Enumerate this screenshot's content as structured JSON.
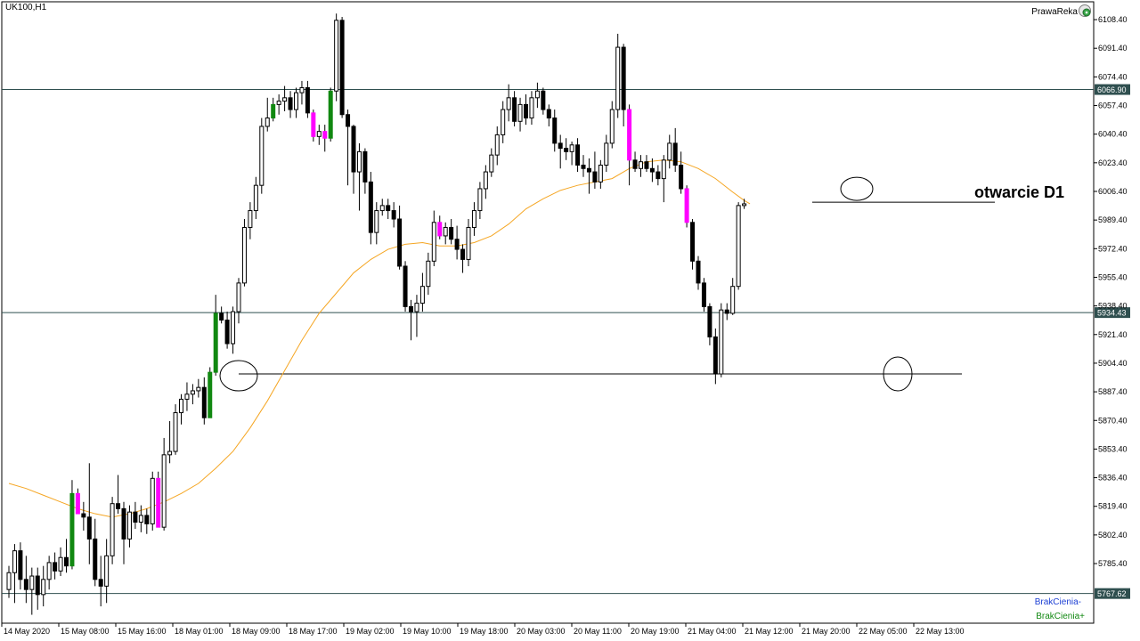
{
  "header": {
    "symbol": "UK100,H1",
    "broker": "PrawaReka"
  },
  "annotation": "otwarcie D1",
  "legend": {
    "minus": "BrakCienia-",
    "plus": "BrakCienia+"
  },
  "colors": {
    "bull_nowick": "#118811",
    "bear_nowick": "#ff00ff",
    "ma": "#f5a623",
    "hline": "#2f4f4f",
    "text": "#000000"
  },
  "icons": {
    "broker": "globe-gear-icon"
  },
  "chart_data": {
    "type": "candlestick",
    "symbol": "UK100",
    "timeframe": "H1",
    "ylim": [
      5750,
      6119
    ],
    "y_ticks": [
      "6108.40",
      "6091.40",
      "6074.40",
      "6057.40",
      "6040.40",
      "6023.40",
      "6006.40",
      "5989.40",
      "5972.40",
      "5955.40",
      "5938.40",
      "5921.40",
      "5904.40",
      "5887.40",
      "5870.40",
      "5853.40",
      "5836.40",
      "5819.40",
      "5802.40",
      "5785.40"
    ],
    "x_ticks": [
      "14 May 2020",
      "15 May 08:00",
      "15 May 16:00",
      "18 May 01:00",
      "18 May 09:00",
      "18 May 17:00",
      "19 May 02:00",
      "19 May 10:00",
      "19 May 18:00",
      "20 May 03:00",
      "20 May 11:00",
      "20 May 19:00",
      "21 May 04:00",
      "21 May 12:00",
      "21 May 20:00",
      "22 May 05:00",
      "22 May 13:00"
    ],
    "price_levels": [
      {
        "value": 6066.9,
        "label": "6066.90"
      },
      {
        "value": 5934.43,
        "label": "5934.43"
      },
      {
        "value": 5767.62,
        "label": "5767.62"
      }
    ],
    "support_lines": [
      {
        "value": 5898
      },
      {
        "value": 6000
      }
    ],
    "candles": [
      {
        "o": 5770,
        "h": 5784,
        "l": 5765,
        "c": 5780,
        "s": "n"
      },
      {
        "o": 5780,
        "h": 5797,
        "l": 5762,
        "c": 5793,
        "s": "n"
      },
      {
        "o": 5793,
        "h": 5798,
        "l": 5770,
        "c": 5776,
        "s": "n"
      },
      {
        "o": 5776,
        "h": 5790,
        "l": 5762,
        "c": 5770,
        "s": "n"
      },
      {
        "o": 5770,
        "h": 5783,
        "l": 5755,
        "c": 5778,
        "s": "n"
      },
      {
        "o": 5778,
        "h": 5783,
        "l": 5758,
        "c": 5767,
        "s": "n"
      },
      {
        "o": 5767,
        "h": 5784,
        "l": 5760,
        "c": 5776,
        "s": "n"
      },
      {
        "o": 5776,
        "h": 5790,
        "l": 5770,
        "c": 5786,
        "s": "n"
      },
      {
        "o": 5786,
        "h": 5792,
        "l": 5776,
        "c": 5781,
        "s": "n"
      },
      {
        "o": 5781,
        "h": 5795,
        "l": 5778,
        "c": 5789,
        "s": "n"
      },
      {
        "o": 5789,
        "h": 5800,
        "l": 5780,
        "c": 5784,
        "s": "n"
      },
      {
        "o": 5784,
        "h": 5835,
        "l": 5782,
        "c": 5827,
        "s": "g"
      },
      {
        "o": 5827,
        "h": 5830,
        "l": 5815,
        "c": 5815,
        "s": "m"
      },
      {
        "o": 5815,
        "h": 5822,
        "l": 5805,
        "c": 5813,
        "s": "n"
      },
      {
        "o": 5813,
        "h": 5845,
        "l": 5785,
        "c": 5800,
        "s": "n"
      },
      {
        "o": 5800,
        "h": 5812,
        "l": 5772,
        "c": 5776,
        "s": "n"
      },
      {
        "o": 5776,
        "h": 5790,
        "l": 5760,
        "c": 5772,
        "s": "n"
      },
      {
        "o": 5772,
        "h": 5800,
        "l": 5762,
        "c": 5790,
        "s": "n"
      },
      {
        "o": 5790,
        "h": 5825,
        "l": 5785,
        "c": 5821,
        "s": "n"
      },
      {
        "o": 5821,
        "h": 5838,
        "l": 5815,
        "c": 5818,
        "s": "n"
      },
      {
        "o": 5818,
        "h": 5822,
        "l": 5785,
        "c": 5800,
        "s": "n"
      },
      {
        "o": 5800,
        "h": 5820,
        "l": 5795,
        "c": 5816,
        "s": "n"
      },
      {
        "o": 5816,
        "h": 5822,
        "l": 5806,
        "c": 5810,
        "s": "n"
      },
      {
        "o": 5810,
        "h": 5820,
        "l": 5804,
        "c": 5814,
        "s": "n"
      },
      {
        "o": 5814,
        "h": 5818,
        "l": 5803,
        "c": 5809,
        "s": "n"
      },
      {
        "o": 5809,
        "h": 5840,
        "l": 5805,
        "c": 5836,
        "s": "n"
      },
      {
        "o": 5836,
        "h": 5840,
        "l": 5807,
        "c": 5807,
        "s": "m"
      },
      {
        "o": 5807,
        "h": 5860,
        "l": 5805,
        "c": 5850,
        "s": "n"
      },
      {
        "o": 5850,
        "h": 5870,
        "l": 5845,
        "c": 5852,
        "s": "n"
      },
      {
        "o": 5852,
        "h": 5880,
        "l": 5850,
        "c": 5875,
        "s": "n"
      },
      {
        "o": 5875,
        "h": 5886,
        "l": 5868,
        "c": 5883,
        "s": "n"
      },
      {
        "o": 5883,
        "h": 5893,
        "l": 5876,
        "c": 5886,
        "s": "n"
      },
      {
        "o": 5886,
        "h": 5892,
        "l": 5880,
        "c": 5888,
        "s": "n"
      },
      {
        "o": 5888,
        "h": 5895,
        "l": 5884,
        "c": 5890,
        "s": "n"
      },
      {
        "o": 5890,
        "h": 5896,
        "l": 5868,
        "c": 5872,
        "s": "n"
      },
      {
        "o": 5872,
        "h": 5902,
        "l": 5872,
        "c": 5899,
        "s": "g"
      },
      {
        "o": 5899,
        "h": 5945,
        "l": 5897,
        "c": 5934,
        "s": "g"
      },
      {
        "o": 5934,
        "h": 5938,
        "l": 5928,
        "c": 5930,
        "s": "n"
      },
      {
        "o": 5930,
        "h": 5935,
        "l": 5913,
        "c": 5916,
        "s": "n"
      },
      {
        "o": 5916,
        "h": 5938,
        "l": 5910,
        "c": 5935,
        "s": "n"
      },
      {
        "o": 5935,
        "h": 5955,
        "l": 5928,
        "c": 5952,
        "s": "n"
      },
      {
        "o": 5952,
        "h": 5990,
        "l": 5950,
        "c": 5985,
        "s": "n"
      },
      {
        "o": 5985,
        "h": 6000,
        "l": 5978,
        "c": 5995,
        "s": "n"
      },
      {
        "o": 5995,
        "h": 6015,
        "l": 5990,
        "c": 6010,
        "s": "n"
      },
      {
        "o": 6010,
        "h": 6050,
        "l": 6005,
        "c": 6045,
        "s": "n"
      },
      {
        "o": 6045,
        "h": 6062,
        "l": 6042,
        "c": 6050,
        "s": "n"
      },
      {
        "o": 6050,
        "h": 6062,
        "l": 6048,
        "c": 6058,
        "s": "g"
      },
      {
        "o": 6058,
        "h": 6064,
        "l": 6052,
        "c": 6060,
        "s": "n"
      },
      {
        "o": 6060,
        "h": 6069,
        "l": 6054,
        "c": 6062,
        "s": "n"
      },
      {
        "o": 6062,
        "h": 6066,
        "l": 6050,
        "c": 6055,
        "s": "n"
      },
      {
        "o": 6055,
        "h": 6068,
        "l": 6050,
        "c": 6065,
        "s": "n"
      },
      {
        "o": 6065,
        "h": 6072,
        "l": 6058,
        "c": 6068,
        "s": "n"
      },
      {
        "o": 6068,
        "h": 6072,
        "l": 6050,
        "c": 6053,
        "s": "n"
      },
      {
        "o": 6053,
        "h": 6055,
        "l": 6036,
        "c": 6039,
        "s": "m"
      },
      {
        "o": 6039,
        "h": 6046,
        "l": 6034,
        "c": 6042,
        "s": "n"
      },
      {
        "o": 6042,
        "h": 6046,
        "l": 6030,
        "c": 6038,
        "s": "m"
      },
      {
        "o": 6038,
        "h": 6068,
        "l": 6036,
        "c": 6066,
        "s": "g"
      },
      {
        "o": 6066,
        "h": 6112,
        "l": 6060,
        "c": 6108,
        "s": "n"
      },
      {
        "o": 6108,
        "h": 6110,
        "l": 6050,
        "c": 6052,
        "s": "n"
      },
      {
        "o": 6052,
        "h": 6055,
        "l": 6010,
        "c": 6045,
        "s": "n"
      },
      {
        "o": 6045,
        "h": 6046,
        "l": 6005,
        "c": 6018,
        "s": "n"
      },
      {
        "o": 6018,
        "h": 6035,
        "l": 5995,
        "c": 6030,
        "s": "n"
      },
      {
        "o": 6030,
        "h": 6032,
        "l": 6005,
        "c": 6012,
        "s": "n"
      },
      {
        "o": 6012,
        "h": 6018,
        "l": 5975,
        "c": 5982,
        "s": "n"
      },
      {
        "o": 5982,
        "h": 6000,
        "l": 5975,
        "c": 5995,
        "s": "n"
      },
      {
        "o": 5995,
        "h": 6002,
        "l": 5992,
        "c": 5998,
        "s": "n"
      },
      {
        "o": 5998,
        "h": 6002,
        "l": 5990,
        "c": 5995,
        "s": "n"
      },
      {
        "o": 5995,
        "h": 6000,
        "l": 5985,
        "c": 5990,
        "s": "n"
      },
      {
        "o": 5990,
        "h": 5998,
        "l": 5960,
        "c": 5962,
        "s": "n"
      },
      {
        "o": 5962,
        "h": 5965,
        "l": 5935,
        "c": 5938,
        "s": "n"
      },
      {
        "o": 5938,
        "h": 5942,
        "l": 5918,
        "c": 5935,
        "s": "n"
      },
      {
        "o": 5935,
        "h": 5945,
        "l": 5920,
        "c": 5940,
        "s": "n"
      },
      {
        "o": 5940,
        "h": 5958,
        "l": 5935,
        "c": 5950,
        "s": "n"
      },
      {
        "o": 5950,
        "h": 5970,
        "l": 5945,
        "c": 5965,
        "s": "n"
      },
      {
        "o": 5965,
        "h": 5995,
        "l": 5962,
        "c": 5988,
        "s": "n"
      },
      {
        "o": 5988,
        "h": 5992,
        "l": 5978,
        "c": 5980,
        "s": "m"
      },
      {
        "o": 5980,
        "h": 5988,
        "l": 5975,
        "c": 5985,
        "s": "n"
      },
      {
        "o": 5985,
        "h": 5990,
        "l": 5975,
        "c": 5978,
        "s": "n"
      },
      {
        "o": 5978,
        "h": 5986,
        "l": 5966,
        "c": 5972,
        "s": "n"
      },
      {
        "o": 5972,
        "h": 5975,
        "l": 5958,
        "c": 5966,
        "s": "n"
      },
      {
        "o": 5966,
        "h": 5990,
        "l": 5962,
        "c": 5985,
        "s": "n"
      },
      {
        "o": 5985,
        "h": 6000,
        "l": 5980,
        "c": 5995,
        "s": "n"
      },
      {
        "o": 5995,
        "h": 6012,
        "l": 5990,
        "c": 6008,
        "s": "n"
      },
      {
        "o": 6008,
        "h": 6022,
        "l": 6002,
        "c": 6018,
        "s": "n"
      },
      {
        "o": 6018,
        "h": 6032,
        "l": 6015,
        "c": 6028,
        "s": "n"
      },
      {
        "o": 6028,
        "h": 6045,
        "l": 6022,
        "c": 6040,
        "s": "n"
      },
      {
        "o": 6040,
        "h": 6060,
        "l": 6035,
        "c": 6055,
        "s": "n"
      },
      {
        "o": 6055,
        "h": 6070,
        "l": 6048,
        "c": 6062,
        "s": "n"
      },
      {
        "o": 6062,
        "h": 6066,
        "l": 6045,
        "c": 6048,
        "s": "n"
      },
      {
        "o": 6048,
        "h": 6062,
        "l": 6042,
        "c": 6058,
        "s": "n"
      },
      {
        "o": 6058,
        "h": 6064,
        "l": 6046,
        "c": 6050,
        "s": "n"
      },
      {
        "o": 6050,
        "h": 6066,
        "l": 6046,
        "c": 6062,
        "s": "n"
      },
      {
        "o": 6062,
        "h": 6071,
        "l": 6056,
        "c": 6066,
        "s": "n"
      },
      {
        "o": 6066,
        "h": 6068,
        "l": 6052,
        "c": 6055,
        "s": "n"
      },
      {
        "o": 6055,
        "h": 6058,
        "l": 6045,
        "c": 6050,
        "s": "n"
      },
      {
        "o": 6050,
        "h": 6055,
        "l": 6030,
        "c": 6035,
        "s": "n"
      },
      {
        "o": 6035,
        "h": 6040,
        "l": 6020,
        "c": 6032,
        "s": "n"
      },
      {
        "o": 6032,
        "h": 6038,
        "l": 6025,
        "c": 6030,
        "s": "n"
      },
      {
        "o": 6030,
        "h": 6036,
        "l": 6022,
        "c": 6034,
        "s": "n"
      },
      {
        "o": 6034,
        "h": 6038,
        "l": 6018,
        "c": 6022,
        "s": "n"
      },
      {
        "o": 6022,
        "h": 6028,
        "l": 6015,
        "c": 6020,
        "s": "n"
      },
      {
        "o": 6020,
        "h": 6026,
        "l": 6005,
        "c": 6018,
        "s": "n"
      },
      {
        "o": 6018,
        "h": 6030,
        "l": 6008,
        "c": 6012,
        "s": "n"
      },
      {
        "o": 6012,
        "h": 6025,
        "l": 6008,
        "c": 6022,
        "s": "n"
      },
      {
        "o": 6022,
        "h": 6040,
        "l": 6018,
        "c": 6035,
        "s": "n"
      },
      {
        "o": 6035,
        "h": 6060,
        "l": 6032,
        "c": 6055,
        "s": "n"
      },
      {
        "o": 6055,
        "h": 6100,
        "l": 6050,
        "c": 6092,
        "s": "n"
      },
      {
        "o": 6092,
        "h": 6094,
        "l": 6045,
        "c": 6055,
        "s": "n"
      },
      {
        "o": 6055,
        "h": 6058,
        "l": 6010,
        "c": 6025,
        "s": "m"
      },
      {
        "o": 6025,
        "h": 6030,
        "l": 6018,
        "c": 6020,
        "s": "n"
      },
      {
        "o": 6020,
        "h": 6028,
        "l": 6015,
        "c": 6024,
        "s": "n"
      },
      {
        "o": 6024,
        "h": 6028,
        "l": 6018,
        "c": 6020,
        "s": "n"
      },
      {
        "o": 6020,
        "h": 6026,
        "l": 6012,
        "c": 6018,
        "s": "n"
      },
      {
        "o": 6018,
        "h": 6022,
        "l": 6010,
        "c": 6014,
        "s": "n"
      },
      {
        "o": 6014,
        "h": 6028,
        "l": 6000,
        "c": 6025,
        "s": "n"
      },
      {
        "o": 6025,
        "h": 6040,
        "l": 6020,
        "c": 6035,
        "s": "n"
      },
      {
        "o": 6035,
        "h": 6044,
        "l": 6018,
        "c": 6022,
        "s": "n"
      },
      {
        "o": 6022,
        "h": 6030,
        "l": 6005,
        "c": 6008,
        "s": "n"
      },
      {
        "o": 6008,
        "h": 6010,
        "l": 5985,
        "c": 5988,
        "s": "m"
      },
      {
        "o": 5988,
        "h": 5990,
        "l": 5960,
        "c": 5965,
        "s": "n"
      },
      {
        "o": 5965,
        "h": 5968,
        "l": 5948,
        "c": 5952,
        "s": "n"
      },
      {
        "o": 5952,
        "h": 5955,
        "l": 5935,
        "c": 5938,
        "s": "n"
      },
      {
        "o": 5938,
        "h": 5940,
        "l": 5915,
        "c": 5920,
        "s": "n"
      },
      {
        "o": 5920,
        "h": 5925,
        "l": 5892,
        "c": 5898,
        "s": "n"
      },
      {
        "o": 5898,
        "h": 5940,
        "l": 5896,
        "c": 5936,
        "s": "n"
      },
      {
        "o": 5936,
        "h": 5940,
        "l": 5930,
        "c": 5934,
        "s": "n"
      },
      {
        "o": 5934,
        "h": 5955,
        "l": 5933,
        "c": 5950,
        "s": "n"
      },
      {
        "o": 5950,
        "h": 6000,
        "l": 5948,
        "c": 5998,
        "s": "n"
      },
      {
        "o": 5998,
        "h": 6002,
        "l": 5996,
        "c": 5999,
        "s": "n"
      }
    ],
    "ma": {
      "name": "",
      "points": [
        [
          0,
          5833
        ],
        [
          3,
          5830
        ],
        [
          6,
          5826
        ],
        [
          9,
          5822
        ],
        [
          12,
          5818
        ],
        [
          15,
          5815
        ],
        [
          18,
          5813
        ],
        [
          21,
          5815
        ],
        [
          24,
          5818
        ],
        [
          27,
          5822
        ],
        [
          30,
          5827
        ],
        [
          33,
          5833
        ],
        [
          36,
          5842
        ],
        [
          39,
          5852
        ],
        [
          42,
          5866
        ],
        [
          45,
          5882
        ],
        [
          48,
          5900
        ],
        [
          51,
          5918
        ],
        [
          54,
          5934
        ],
        [
          57,
          5946
        ],
        [
          60,
          5958
        ],
        [
          63,
          5966
        ],
        [
          66,
          5972
        ],
        [
          69,
          5975
        ],
        [
          72,
          5976
        ],
        [
          75,
          5974
        ],
        [
          78,
          5974
        ],
        [
          81,
          5976
        ],
        [
          84,
          5980
        ],
        [
          87,
          5987
        ],
        [
          90,
          5996
        ],
        [
          93,
          6002
        ],
        [
          96,
          6007
        ],
        [
          99,
          6010
        ],
        [
          102,
          6012
        ],
        [
          105,
          6014
        ],
        [
          108,
          6020
        ],
        [
          111,
          6024
        ],
        [
          114,
          6025
        ],
        [
          117,
          6024
        ],
        [
          120,
          6020
        ],
        [
          123,
          6014
        ],
        [
          126,
          6006
        ],
        [
          128,
          6001
        ],
        [
          129,
          5999
        ]
      ]
    }
  }
}
